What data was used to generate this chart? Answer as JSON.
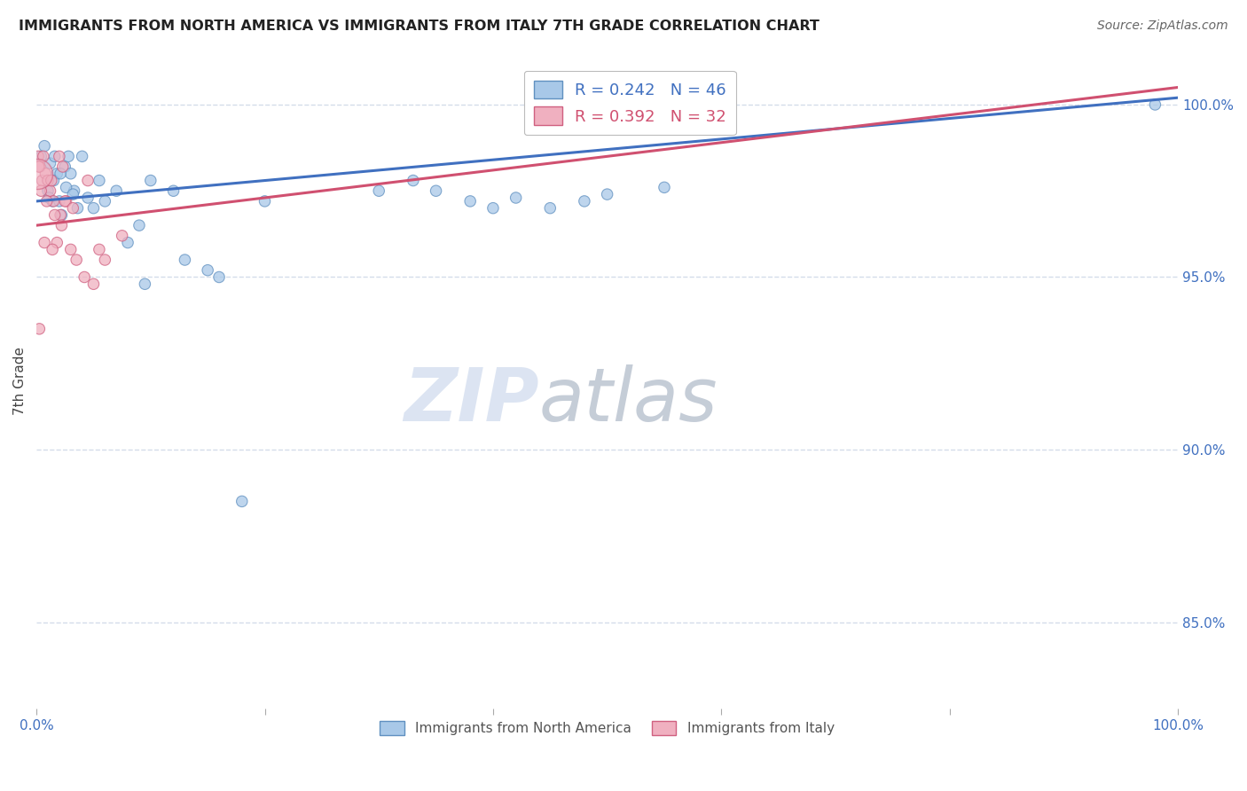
{
  "title": "IMMIGRANTS FROM NORTH AMERICA VS IMMIGRANTS FROM ITALY 7TH GRADE CORRELATION CHART",
  "source": "Source: ZipAtlas.com",
  "ylabel": "7th Grade",
  "right_yticks": [
    85.0,
    90.0,
    95.0,
    100.0
  ],
  "watermark_zip": "ZIP",
  "watermark_atlas": "atlas",
  "legend_blue_label": "Immigrants from North America",
  "legend_pink_label": "Immigrants from Italy",
  "R_blue": 0.242,
  "N_blue": 46,
  "R_pink": 0.392,
  "N_pink": 32,
  "blue_color": "#a8c8e8",
  "pink_color": "#f0b0c0",
  "blue_edge_color": "#6090c0",
  "pink_edge_color": "#d06080",
  "blue_line_color": "#4070c0",
  "pink_line_color": "#d05070",
  "blue_line_x": [
    0.0,
    100.0
  ],
  "blue_line_y": [
    97.2,
    100.2
  ],
  "pink_line_x": [
    0.0,
    100.0
  ],
  "pink_line_y": [
    96.5,
    100.5
  ],
  "blue_scatter_x": [
    0.4,
    0.7,
    1.0,
    1.2,
    1.4,
    1.6,
    1.8,
    2.0,
    2.2,
    2.5,
    2.8,
    3.0,
    3.3,
    3.6,
    4.0,
    4.5,
    5.0,
    5.5,
    6.0,
    7.0,
    8.0,
    9.0,
    10.0,
    12.0,
    15.0,
    20.0,
    30.0,
    33.0,
    35.0,
    38.0,
    40.0,
    42.0,
    45.0,
    48.0,
    50.0,
    55.0,
    98.0,
    1.1,
    1.5,
    2.1,
    2.6,
    3.2,
    13.0,
    16.0,
    9.5,
    18.0
  ],
  "blue_scatter_y": [
    98.5,
    98.8,
    97.5,
    98.3,
    97.2,
    98.5,
    98.0,
    97.2,
    96.8,
    98.2,
    98.5,
    98.0,
    97.5,
    97.0,
    98.5,
    97.3,
    97.0,
    97.8,
    97.2,
    97.5,
    96.0,
    96.5,
    97.8,
    97.5,
    95.2,
    97.2,
    97.5,
    97.8,
    97.5,
    97.2,
    97.0,
    97.3,
    97.0,
    97.2,
    97.4,
    97.6,
    100.0,
    97.3,
    97.8,
    98.0,
    97.6,
    97.4,
    95.5,
    95.0,
    94.8,
    88.5
  ],
  "blue_scatter_size": [
    80,
    80,
    80,
    80,
    80,
    80,
    80,
    80,
    80,
    80,
    80,
    80,
    80,
    80,
    80,
    80,
    80,
    80,
    80,
    80,
    80,
    80,
    80,
    80,
    80,
    80,
    80,
    80,
    80,
    80,
    80,
    80,
    80,
    80,
    80,
    80,
    80,
    80,
    80,
    80,
    80,
    80,
    80,
    80,
    80,
    80
  ],
  "pink_scatter_x": [
    0.15,
    0.3,
    0.5,
    0.8,
    1.0,
    1.2,
    1.5,
    1.8,
    2.0,
    2.3,
    2.6,
    3.0,
    3.5,
    4.2,
    5.0,
    6.0,
    0.2,
    0.6,
    1.3,
    2.1,
    0.4,
    0.9,
    1.6,
    2.5,
    0.7,
    1.4,
    2.2,
    3.2,
    4.5,
    5.5,
    0.25,
    7.5
  ],
  "pink_scatter_y": [
    98.5,
    98.2,
    97.8,
    98.0,
    97.8,
    97.5,
    97.2,
    96.0,
    98.5,
    98.2,
    97.2,
    95.8,
    95.5,
    95.0,
    94.8,
    95.5,
    98.2,
    98.5,
    97.8,
    96.8,
    97.5,
    97.2,
    96.8,
    97.2,
    96.0,
    95.8,
    96.5,
    97.0,
    97.8,
    95.8,
    93.5,
    96.2
  ],
  "pink_scatter_size": [
    80,
    80,
    80,
    80,
    80,
    80,
    80,
    80,
    80,
    80,
    80,
    80,
    80,
    80,
    80,
    80,
    80,
    80,
    80,
    80,
    80,
    80,
    80,
    80,
    80,
    80,
    80,
    80,
    80,
    80,
    80,
    80
  ],
  "pink_large_x": [
    0.05
  ],
  "pink_large_y": [
    98.0
  ],
  "pink_large_size": [
    600
  ],
  "xmin": 0.0,
  "xmax": 100.0,
  "ymin": 82.5,
  "ymax": 101.5,
  "grid_color": "#d4dcea",
  "background_color": "#ffffff"
}
